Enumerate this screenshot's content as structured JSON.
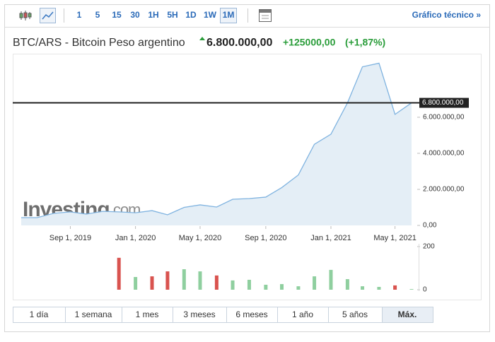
{
  "toolbar": {
    "intervals": [
      "1",
      "5",
      "15",
      "30",
      "1H",
      "5H",
      "1D",
      "1W",
      "1M"
    ],
    "active_interval": 8,
    "technical_link": "Gráfico técnico »"
  },
  "header": {
    "title": "BTC/ARS - Bitcoin Peso argentino",
    "price": "6.800.000,00",
    "change": "+125000,00",
    "change_percent": "(+1,87%)"
  },
  "watermark": {
    "brand": "Investing",
    "suffix": ".com"
  },
  "chart_data": {
    "type": "area",
    "color": "#7fb3e0",
    "fill": "#e4eef6",
    "x": [
      "2019-06-01",
      "2019-07-01",
      "2019-08-01",
      "2019-09-01",
      "2019-10-01",
      "2019-11-01",
      "2019-12-01",
      "2020-01-01",
      "2020-02-01",
      "2020-03-01",
      "2020-04-01",
      "2020-05-01",
      "2020-06-01",
      "2020-07-01",
      "2020-08-01",
      "2020-09-01",
      "2020-10-01",
      "2020-11-01",
      "2020-12-01",
      "2021-01-01",
      "2021-02-01",
      "2021-03-01",
      "2021-04-01",
      "2021-05-01",
      "2021-06-01"
    ],
    "values": [
      430000,
      430000,
      670000,
      750000,
      630000,
      780000,
      750000,
      700000,
      820000,
      590000,
      1000000,
      1140000,
      1020000,
      1450000,
      1490000,
      1570000,
      2100000,
      2800000,
      4500000,
      5060000,
      6800000,
      8800000,
      9000000,
      6160000,
      6800000
    ],
    "xlim": [
      "2019-06-01",
      "2021-06-01"
    ],
    "xticks": [
      {
        "value": "2019-09-01",
        "label": "Sep 1, 2019"
      },
      {
        "value": "2020-01-01",
        "label": "Jan 1, 2020"
      },
      {
        "value": "2020-05-01",
        "label": "May 1, 2020"
      },
      {
        "value": "2020-09-01",
        "label": "Sep 1, 2020"
      },
      {
        "value": "2021-01-01",
        "label": "Jan 1, 2021"
      },
      {
        "value": "2021-05-01",
        "label": "May 1, 2021"
      }
    ],
    "ylim": [
      0,
      9370000
    ],
    "yticks": [
      {
        "value": 0,
        "label": "0,00"
      },
      {
        "value": 2000000,
        "label": "2.000.000,00"
      },
      {
        "value": 4000000,
        "label": "4.000.000,00"
      },
      {
        "value": 6000000,
        "label": "6.000.000,00"
      }
    ],
    "price_line": {
      "value": 6800000,
      "label": "6.800.000,00",
      "color": "#222222"
    },
    "volume": {
      "values": [
        null,
        null,
        null,
        null,
        null,
        null,
        148,
        59,
        62,
        85,
        95,
        85,
        66,
        43,
        46,
        23,
        26,
        16,
        62,
        92,
        49,
        16,
        13,
        20,
        3
      ],
      "colors": [
        null,
        null,
        null,
        null,
        null,
        null,
        "#d9534f",
        "#8fcf9f",
        "#d9534f",
        "#d9534f",
        "#8fcf9f",
        "#8fcf9f",
        "#d9534f",
        "#8fcf9f",
        "#8fcf9f",
        "#8fcf9f",
        "#8fcf9f",
        "#8fcf9f",
        "#8fcf9f",
        "#8fcf9f",
        "#8fcf9f",
        "#8fcf9f",
        "#8fcf9f",
        "#d9534f",
        "#8fcf9f"
      ],
      "ylim": [
        0,
        213
      ],
      "yticks": [
        0,
        200
      ]
    }
  },
  "ranges": {
    "labels": [
      "1 día",
      "1 semana",
      "1 mes",
      "3 meses",
      "6 meses",
      "1 año",
      "5 años",
      "Máx."
    ],
    "active": 7
  }
}
